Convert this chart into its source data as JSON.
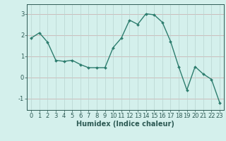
{
  "x": [
    0,
    1,
    2,
    3,
    4,
    5,
    6,
    7,
    8,
    9,
    10,
    11,
    12,
    13,
    14,
    15,
    16,
    17,
    18,
    19,
    20,
    21,
    22,
    23
  ],
  "y": [
    1.85,
    2.1,
    1.65,
    0.8,
    0.75,
    0.8,
    0.6,
    0.45,
    0.45,
    0.45,
    1.4,
    1.85,
    2.7,
    2.5,
    3.0,
    2.95,
    2.6,
    1.7,
    0.5,
    -0.6,
    0.5,
    0.15,
    -0.1,
    -1.2
  ],
  "line_color": "#2d7d6e",
  "marker": "D",
  "marker_size": 2.0,
  "background_color": "#d4f0ec",
  "grid_color_h": "#c8a8a8",
  "grid_color_v": "#b8d4d0",
  "xlabel": "Humidex (Indice chaleur)",
  "xlabel_fontsize": 7,
  "yticks": [
    -1,
    0,
    1,
    2,
    3
  ],
  "xticks": [
    0,
    1,
    2,
    3,
    4,
    5,
    6,
    7,
    8,
    9,
    10,
    11,
    12,
    13,
    14,
    15,
    16,
    17,
    18,
    19,
    20,
    21,
    22,
    23
  ],
  "ylim": [
    -1.55,
    3.45
  ],
  "xlim": [
    -0.5,
    23.5
  ],
  "tick_fontsize": 6,
  "line_width": 1.0
}
